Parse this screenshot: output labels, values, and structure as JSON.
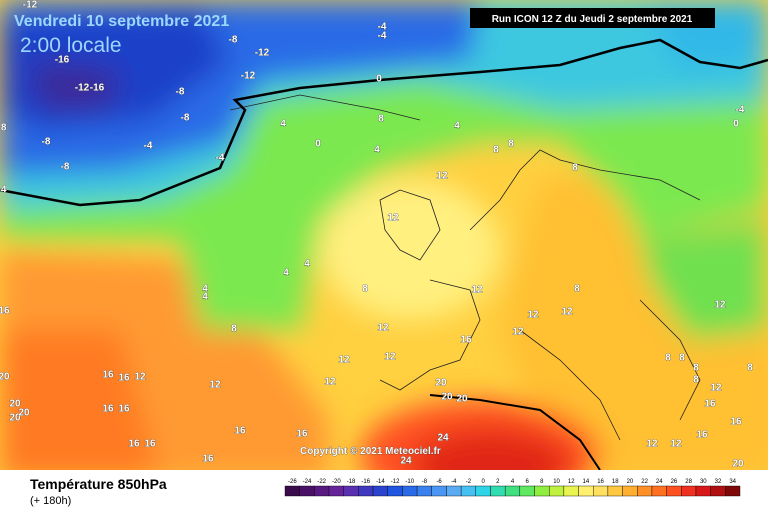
{
  "header": {
    "date": "Vendredi 10 septembre 2021",
    "time": "2:00 locale",
    "run": "Run ICON 12 Z du Jeudi 2 septembre 2021"
  },
  "copyright": "Copyright © 2021 Meteociel.fr",
  "legend": {
    "title": "Température 850hPa",
    "subtitle": "(+ 180h)",
    "ticks": [
      -26,
      -24,
      -22,
      -20,
      -18,
      -16,
      -14,
      -12,
      -10,
      -8,
      -6,
      -4,
      -2,
      0,
      2,
      4,
      6,
      8,
      10,
      12,
      14,
      16,
      18,
      20,
      22,
      24,
      26,
      28,
      30,
      32,
      34
    ],
    "colors": [
      "#3b0a4a",
      "#4a1066",
      "#581a80",
      "#66249a",
      "#5a2fb0",
      "#4038c0",
      "#2a44d0",
      "#1f55e0",
      "#2a6ae8",
      "#3a80ee",
      "#4a96f2",
      "#5aaaf4",
      "#45c0f0",
      "#30d4e8",
      "#30dcb0",
      "#40e080",
      "#60e860",
      "#90ee40",
      "#c0f040",
      "#e8f450",
      "#fff070",
      "#ffe060",
      "#ffc840",
      "#ffb030",
      "#ff9028",
      "#ff7020",
      "#ff5020",
      "#f03020",
      "#d81818",
      "#b01010",
      "#800808"
    ]
  },
  "contour_labels": [
    -12,
    -4,
    -4,
    -8,
    -12,
    -12,
    -16,
    -12,
    -16,
    -8,
    -8,
    -8,
    -8,
    -4,
    -4,
    -8,
    -4,
    0,
    4,
    0,
    8,
    4,
    4,
    8,
    8,
    8,
    12,
    12,
    4,
    4,
    4,
    4,
    8,
    8,
    12,
    12,
    12,
    12,
    12,
    12,
    16,
    12,
    12,
    12,
    -4,
    0,
    8,
    16,
    16,
    12,
    16,
    16,
    16,
    16,
    16,
    16,
    16,
    16,
    20,
    20,
    20,
    20,
    20,
    20,
    20,
    24,
    24,
    16,
    16,
    12,
    12,
    16,
    20,
    8,
    8,
    8,
    8,
    8,
    12,
    12
  ]
}
